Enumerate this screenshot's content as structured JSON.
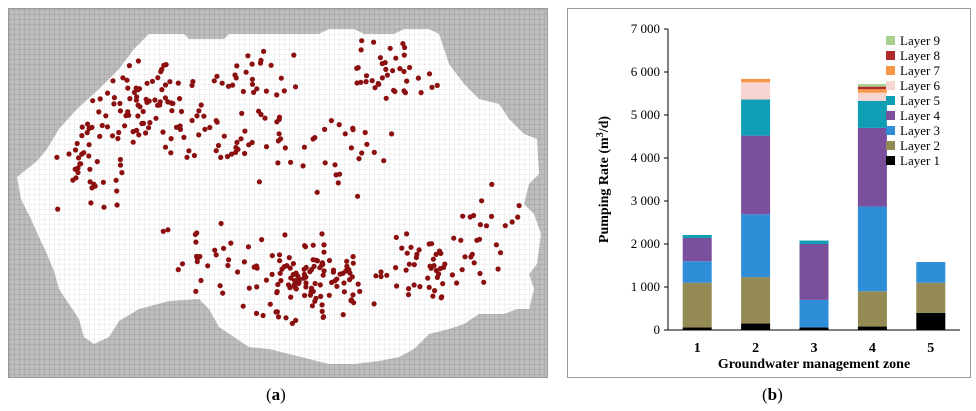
{
  "panel_a": {
    "label": "a",
    "description_visible": false
  },
  "panel_b": {
    "label": "b"
  },
  "colors": {
    "grid_bg": "#bdbdbd",
    "domain": "#ffffff",
    "well": "#8b0f0f",
    "layer1": "#000000",
    "layer2": "#948a54",
    "layer3": "#2f8ed8",
    "layer4": "#7a4f9c",
    "layer5": "#0f9eb4",
    "layer6": "#f7d5d0",
    "layer7": "#f79646",
    "layer8": "#b02a2a",
    "layer9": "#a9d18e"
  },
  "chart_data": {
    "type": "bar",
    "stacked": true,
    "title": "",
    "xlabel": "Groundwater management zone",
    "ylabel": "Pumping  Rate (m³/d)",
    "ylabel_parts": {
      "before": "Pumping  Rate (m",
      "sup": "3",
      "after": "/d)"
    },
    "ylim": [
      0,
      7000
    ],
    "yticks": [
      0,
      1000,
      2000,
      3000,
      4000,
      5000,
      6000,
      7000
    ],
    "ytick_labels": [
      "0",
      "1 000",
      "2 000",
      "3 000",
      "4 000",
      "5 000",
      "6 000",
      "7 000"
    ],
    "categories": [
      "1",
      "2",
      "3",
      "4",
      "5"
    ],
    "legend_position": "top-right",
    "series": [
      {
        "name": "Layer 1",
        "color": "#000000",
        "values": [
          60,
          150,
          60,
          80,
          400
        ]
      },
      {
        "name": "Layer 2",
        "color": "#948a54",
        "values": [
          1040,
          1080,
          0,
          820,
          700
        ]
      },
      {
        "name": "Layer 3",
        "color": "#2f8ed8",
        "values": [
          500,
          1460,
          640,
          1970,
          480
        ]
      },
      {
        "name": "Layer 4",
        "color": "#7a4f9c",
        "values": [
          540,
          1830,
          1300,
          1830,
          0
        ]
      },
      {
        "name": "Layer 5",
        "color": "#0f9eb4",
        "values": [
          70,
          840,
          80,
          630,
          0
        ]
      },
      {
        "name": "Layer 6",
        "color": "#f7d5d0",
        "values": [
          0,
          400,
          0,
          190,
          0
        ]
      },
      {
        "name": "Layer 7",
        "color": "#f79646",
        "values": [
          0,
          80,
          0,
          80,
          0
        ]
      },
      {
        "name": "Layer 8",
        "color": "#b02a2a",
        "values": [
          0,
          0,
          0,
          60,
          0
        ]
      },
      {
        "name": "Layer 9",
        "color": "#a9d18e",
        "values": [
          0,
          0,
          0,
          60,
          0
        ]
      }
    ],
    "legend_labels_top_down": [
      "Layer 9",
      "Layer 8",
      "Layer 7",
      "Layer 6",
      "Layer 5",
      "Layer 4",
      "Layer 3",
      "Layer 2",
      "Layer 1"
    ]
  }
}
